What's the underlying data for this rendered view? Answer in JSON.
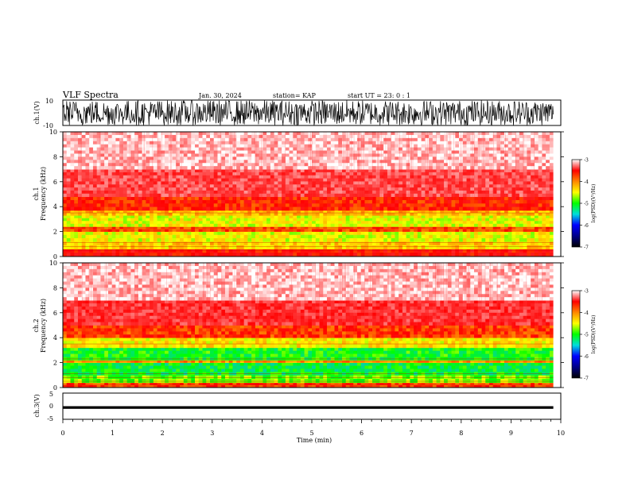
{
  "header": {
    "title": "VLF Spectra",
    "date": "Jan. 30, 2024",
    "station": "station= KAP",
    "start_ut": "start  UT =   23: 0  : 1"
  },
  "colorbar": {
    "label": "log(PSD)(V²/Hz)",
    "ticks": [
      "-3",
      "-4",
      "-5",
      "-6",
      "-7"
    ],
    "colors": [
      "#ffffff",
      "#ff0000",
      "#ff8800",
      "#ffff00",
      "#00ff00",
      "#00dddd",
      "#0000ff",
      "#000088",
      "#000000"
    ]
  },
  "chart_data": [
    {
      "type": "line",
      "panel": "ch1-waveform",
      "ylabel": "ch.1(V)",
      "ylim": [
        -10,
        10
      ],
      "yticks": [
        "10",
        "-10"
      ],
      "description_values": {
        "envelope": [
          -10,
          10
        ],
        "trace_fills_range": true
      }
    },
    {
      "type": "heatmap",
      "panel": "ch1-spectrogram",
      "ylabel": "ch.1\nFrequency (kHz)",
      "ylabel_line1": "ch.1",
      "ylabel_line2": "Frequency (kHz)",
      "ylim": [
        0,
        10
      ],
      "yticks": [
        "0",
        "2",
        "4",
        "6",
        "8",
        "10"
      ],
      "xlim": [
        0,
        10
      ],
      "zlim": [
        -7,
        -3
      ],
      "bands": [
        {
          "f_low": 0.0,
          "f_high": 0.6,
          "log_psd": -4.0
        },
        {
          "f_low": 0.6,
          "f_high": 1.2,
          "log_psd": -4.8
        },
        {
          "f_low": 1.2,
          "f_high": 2.0,
          "log_psd": -5.0
        },
        {
          "f_low": 2.0,
          "f_high": 2.4,
          "log_psd": -4.3
        },
        {
          "f_low": 2.4,
          "f_high": 3.3,
          "log_psd": -5.0
        },
        {
          "f_low": 3.3,
          "f_high": 3.7,
          "log_psd": -4.7
        },
        {
          "f_low": 3.7,
          "f_high": 4.8,
          "log_psd": -4.1
        },
        {
          "f_low": 4.8,
          "f_high": 7.0,
          "log_psd": -3.6
        },
        {
          "f_low": 7.0,
          "f_high": 10.0,
          "log_psd": -3.2
        }
      ]
    },
    {
      "type": "heatmap",
      "panel": "ch2-spectrogram",
      "ylabel_line1": "ch.2",
      "ylabel_line2": "Frequency (kHz)",
      "ylim": [
        0,
        10
      ],
      "yticks": [
        "0",
        "2",
        "4",
        "6",
        "8",
        "10"
      ],
      "xlim": [
        0,
        10
      ],
      "zlim": [
        -7,
        -3
      ],
      "bands": [
        {
          "f_low": 0.0,
          "f_high": 0.4,
          "log_psd": -4.2
        },
        {
          "f_low": 0.4,
          "f_high": 1.0,
          "log_psd": -5.3
        },
        {
          "f_low": 1.0,
          "f_high": 2.0,
          "log_psd": -5.6
        },
        {
          "f_low": 2.0,
          "f_high": 2.2,
          "log_psd": -4.6
        },
        {
          "f_low": 2.2,
          "f_high": 3.2,
          "log_psd": -5.5
        },
        {
          "f_low": 3.2,
          "f_high": 4.0,
          "log_psd": -4.9
        },
        {
          "f_low": 4.0,
          "f_high": 5.0,
          "log_psd": -4.2
        },
        {
          "f_low": 5.0,
          "f_high": 7.0,
          "log_psd": -3.7
        },
        {
          "f_low": 7.0,
          "f_high": 10.0,
          "log_psd": -3.2
        }
      ]
    },
    {
      "type": "line",
      "panel": "ch3-waveform",
      "ylabel": "ch.3(V)",
      "ylim": [
        -5,
        5
      ],
      "yticks": [
        "5",
        "0",
        "-5"
      ],
      "description_values": {
        "envelope": [
          -1,
          0
        ]
      }
    }
  ],
  "xaxis": {
    "label": "Time (min)",
    "xlim": [
      0,
      10
    ],
    "ticks": [
      "0",
      "1",
      "2",
      "3",
      "4",
      "5",
      "6",
      "7",
      "8",
      "9",
      "10"
    ],
    "data_end": 9.85
  }
}
